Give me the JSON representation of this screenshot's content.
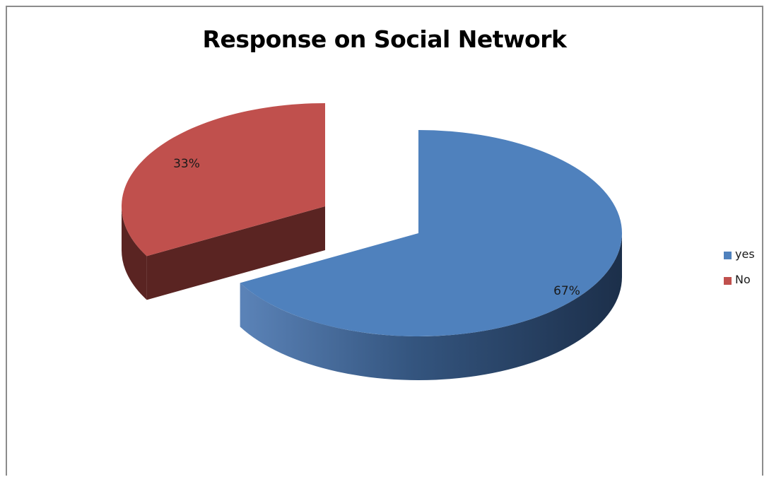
{
  "chart_data": {
    "type": "pie",
    "title": "Response on Social Network",
    "categories": [
      "yes",
      "No"
    ],
    "values": [
      67,
      33
    ],
    "value_labels": [
      "67%",
      "33%"
    ],
    "colors": [
      "#4f81bd",
      "#c0504d"
    ],
    "side_colors": [
      "#2d4f7c",
      "#5a2422"
    ],
    "legend": {
      "position": "right",
      "entries": [
        "yes",
        "No"
      ]
    },
    "style": "3d-exploded"
  }
}
